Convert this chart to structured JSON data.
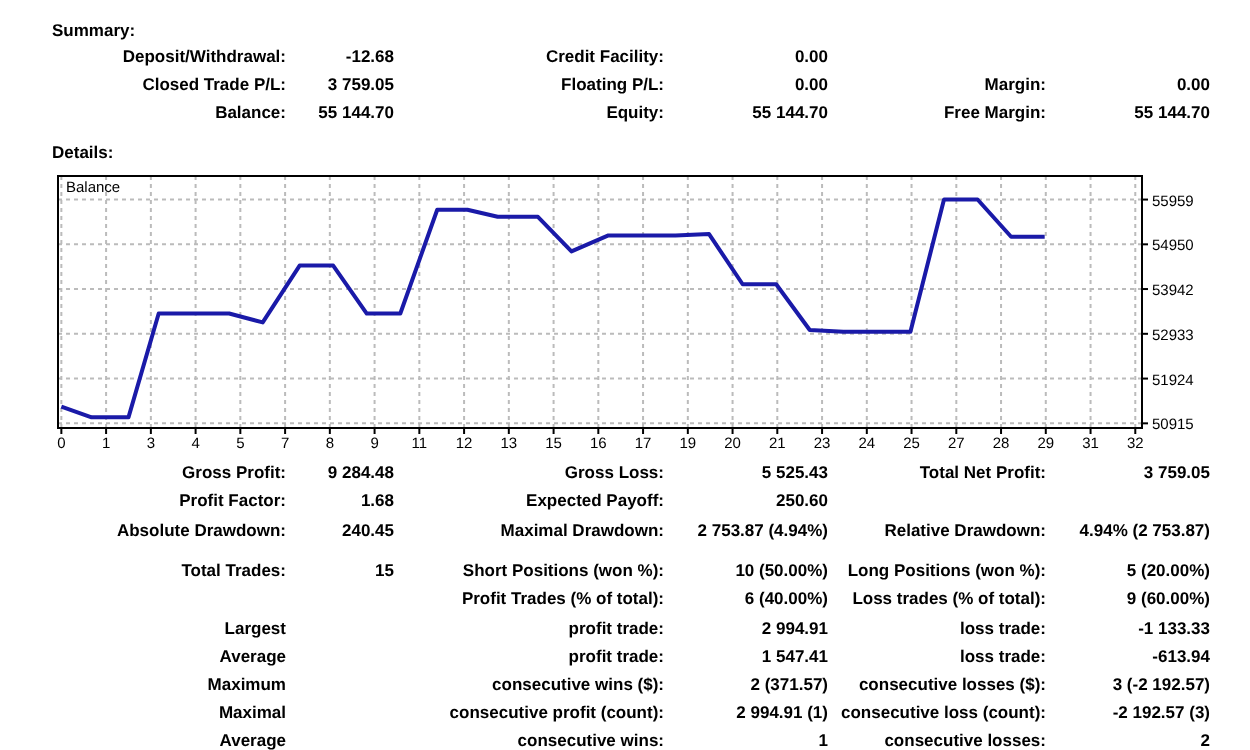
{
  "chart_data": {
    "type": "line",
    "x": [
      0,
      0.9,
      2,
      2.9,
      5,
      6,
      7.1,
      8.1,
      9.1,
      10.1,
      11.2,
      12.1,
      13,
      14.2,
      15.2,
      16.3,
      18.3,
      19.3,
      20.3,
      21.3,
      22.3,
      23.3,
      25.3,
      26.3,
      27.3,
      28.3,
      29.3
    ],
    "series": [
      {
        "name": "Balance",
        "color": "#1a1aa8",
        "values": [
          51290,
          51050,
          51050,
          53390,
          53390,
          53190,
          54470,
          54470,
          53390,
          53390,
          55730,
          55730,
          55570,
          55570,
          54790,
          55150,
          55150,
          55180,
          54050,
          54050,
          53020,
          52980,
          52980,
          55960,
          55960,
          55120,
          55120
        ]
      }
    ],
    "xlim": [
      -0.1,
      32.2
    ],
    "xticks": [
      0,
      {
        "value": 1.333,
        "label": "1"
      },
      {
        "value": 2.667,
        "label": "3"
      },
      4,
      {
        "value": 5.333,
        "label": "5"
      },
      {
        "value": 6.667,
        "label": "7"
      },
      8,
      {
        "value": 9.333,
        "label": "9"
      },
      {
        "value": 10.667,
        "label": "11"
      },
      12,
      {
        "value": 13.333,
        "label": "13"
      },
      {
        "value": 14.667,
        "label": "15"
      },
      16,
      {
        "value": 17.333,
        "label": "17"
      },
      {
        "value": 18.667,
        "label": "19"
      },
      20,
      {
        "value": 21.333,
        "label": "21"
      },
      {
        "value": 22.667,
        "label": "23"
      },
      24,
      {
        "value": 25.333,
        "label": "25"
      },
      {
        "value": 26.667,
        "label": "27"
      },
      28,
      {
        "value": 29.333,
        "label": "29"
      },
      {
        "value": 30.667,
        "label": "31"
      },
      32
    ],
    "ylim": [
      50810,
      56490
    ],
    "yticks": [
      50915,
      51924,
      52933,
      53942,
      54950,
      55959
    ],
    "grid": true,
    "legend": "top left",
    "line_style": "solid",
    "annotations": [
      "Summary:",
      "Deposit/Withdrawal:",
      "-12.68",
      "Credit Facility:",
      "0.00",
      "Closed Trade P/L:",
      "3 759.05",
      "Floating P/L:",
      "0.00",
      "Margin:",
      "0.00",
      "Balance:",
      "55 144.70",
      "Equity:",
      "55 144.70",
      "Free Margin:",
      "55 144.70",
      "Details:",
      "Gross Profit:",
      "9 284.48",
      "Gross Loss:",
      "5 525.43",
      "Total Net Profit:",
      "3 759.05",
      "Profit Factor:",
      "1.68",
      "Expected Payoff:",
      "250.60",
      "Absolute Drawdown:",
      "240.45",
      "Maximal Drawdown:",
      "2 753.87 (4.94%)",
      "Relative Drawdown:",
      "4.94% (2 753.87)",
      "Total Trades:",
      "15",
      "Short Positions (won %):",
      "10 (50.00%)",
      "Long Positions (won %):",
      "5 (20.00%)",
      "Profit Trades (% of total):",
      "6 (40.00%)",
      "Loss trades (% of total):",
      "9 (60.00%)",
      "Largest",
      "profit trade:",
      "2 994.91",
      "loss trade:",
      "-1 133.33",
      "Average",
      "profit trade:",
      "1 547.41",
      "loss trade:",
      "-613.94",
      "Maximum",
      "consecutive wins ($):",
      "2 (371.57)",
      "consecutive losses ($):",
      "3 (-2 192.57)",
      "Maximal",
      "consecutive profit (count):",
      "2 994.91 (1)",
      "consecutive loss (count):",
      "-2 192.57 (3)",
      "Average",
      "consecutive wins:",
      "1",
      "consecutive losses:",
      "2"
    ]
  }
}
